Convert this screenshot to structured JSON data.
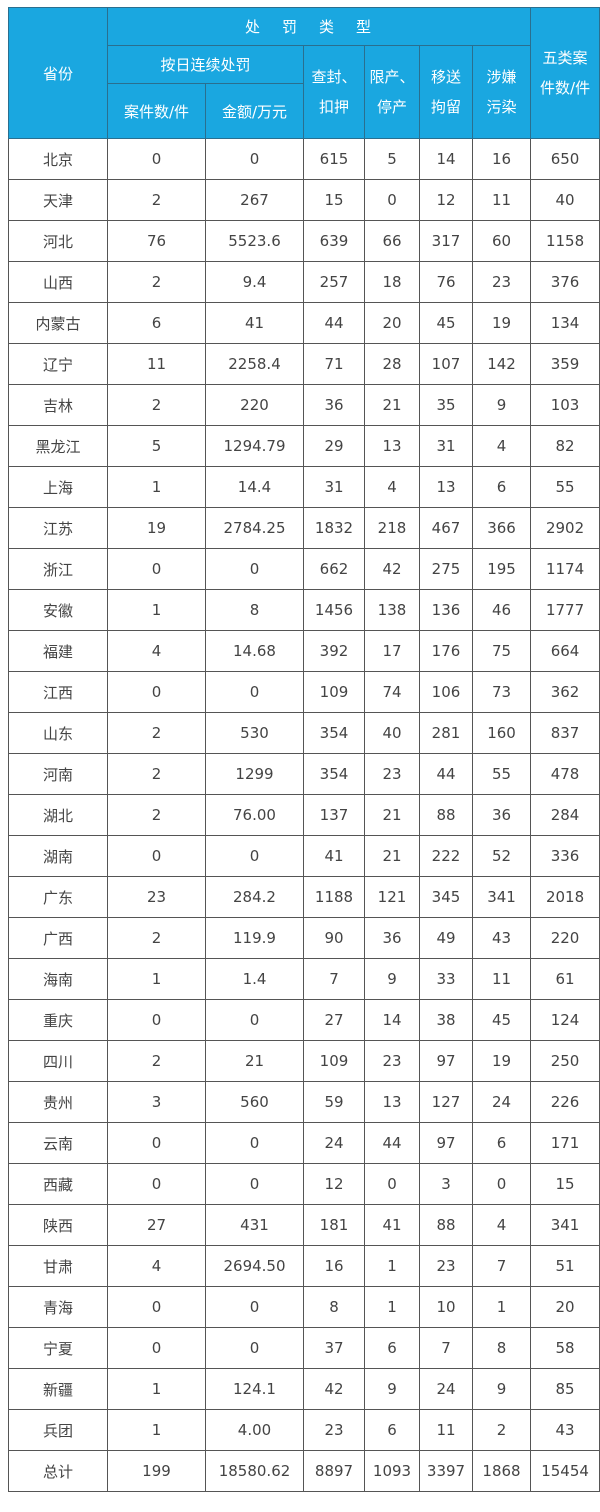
{
  "header": {
    "province": "省份",
    "penalty_type": "处罚类型",
    "daily_penalty": "按日连续处罚",
    "case_count": "案件数/件",
    "amount": "金额/万元",
    "seal_line1": "查封、",
    "seal_line2": "扣押",
    "limit_line1": "限产、",
    "limit_line2": "停产",
    "transfer_line1": "移送",
    "transfer_line2": "拘留",
    "pollution_line1": "涉嫌",
    "pollution_line2": "污染",
    "total_line1": "五类案",
    "total_line2": "件数/件"
  },
  "colors": {
    "header_bg": "#1aa7e0",
    "header_text": "#ffffff",
    "border": "#555555"
  },
  "rows": [
    [
      "北京",
      "0",
      "0",
      "615",
      "5",
      "14",
      "16",
      "650"
    ],
    [
      "天津",
      "2",
      "267",
      "15",
      "0",
      "12",
      "11",
      "40"
    ],
    [
      "河北",
      "76",
      "5523.6",
      "639",
      "66",
      "317",
      "60",
      "1158"
    ],
    [
      "山西",
      "2",
      "9.4",
      "257",
      "18",
      "76",
      "23",
      "376"
    ],
    [
      "内蒙古",
      "6",
      "41",
      "44",
      "20",
      "45",
      "19",
      "134"
    ],
    [
      "辽宁",
      "11",
      "2258.4",
      "71",
      "28",
      "107",
      "142",
      "359"
    ],
    [
      "吉林",
      "2",
      "220",
      "36",
      "21",
      "35",
      "9",
      "103"
    ],
    [
      "黑龙江",
      "5",
      "1294.79",
      "29",
      "13",
      "31",
      "4",
      "82"
    ],
    [
      "上海",
      "1",
      "14.4",
      "31",
      "4",
      "13",
      "6",
      "55"
    ],
    [
      "江苏",
      "19",
      "2784.25",
      "1832",
      "218",
      "467",
      "366",
      "2902"
    ],
    [
      "浙江",
      "0",
      "0",
      "662",
      "42",
      "275",
      "195",
      "1174"
    ],
    [
      "安徽",
      "1",
      "8",
      "1456",
      "138",
      "136",
      "46",
      "1777"
    ],
    [
      "福建",
      "4",
      "14.68",
      "392",
      "17",
      "176",
      "75",
      "664"
    ],
    [
      "江西",
      "0",
      "0",
      "109",
      "74",
      "106",
      "73",
      "362"
    ],
    [
      "山东",
      "2",
      "530",
      "354",
      "40",
      "281",
      "160",
      "837"
    ],
    [
      "河南",
      "2",
      "1299",
      "354",
      "23",
      "44",
      "55",
      "478"
    ],
    [
      "湖北",
      "2",
      "76.00",
      "137",
      "21",
      "88",
      "36",
      "284"
    ],
    [
      "湖南",
      "0",
      "0",
      "41",
      "21",
      "222",
      "52",
      "336"
    ],
    [
      "广东",
      "23",
      "284.2",
      "1188",
      "121",
      "345",
      "341",
      "2018"
    ],
    [
      "广西",
      "2",
      "119.9",
      "90",
      "36",
      "49",
      "43",
      "220"
    ],
    [
      "海南",
      "1",
      "1.4",
      "7",
      "9",
      "33",
      "11",
      "61"
    ],
    [
      "重庆",
      "0",
      "0",
      "27",
      "14",
      "38",
      "45",
      "124"
    ],
    [
      "四川",
      "2",
      "21",
      "109",
      "23",
      "97",
      "19",
      "250"
    ],
    [
      "贵州",
      "3",
      "560",
      "59",
      "13",
      "127",
      "24",
      "226"
    ],
    [
      "云南",
      "0",
      "0",
      "24",
      "44",
      "97",
      "6",
      "171"
    ],
    [
      "西藏",
      "0",
      "0",
      "12",
      "0",
      "3",
      "0",
      "15"
    ],
    [
      "陕西",
      "27",
      "431",
      "181",
      "41",
      "88",
      "4",
      "341"
    ],
    [
      "甘肃",
      "4",
      "2694.50",
      "16",
      "1",
      "23",
      "7",
      "51"
    ],
    [
      "青海",
      "0",
      "0",
      "8",
      "1",
      "10",
      "1",
      "20"
    ],
    [
      "宁夏",
      "0",
      "0",
      "37",
      "6",
      "7",
      "8",
      "58"
    ],
    [
      "新疆",
      "1",
      "124.1",
      "42",
      "9",
      "24",
      "9",
      "85"
    ],
    [
      "兵团",
      "1",
      "4.00",
      "23",
      "6",
      "11",
      "2",
      "43"
    ],
    [
      "总计",
      "199",
      "18580.62",
      "8897",
      "1093",
      "3397",
      "1868",
      "15454"
    ]
  ]
}
